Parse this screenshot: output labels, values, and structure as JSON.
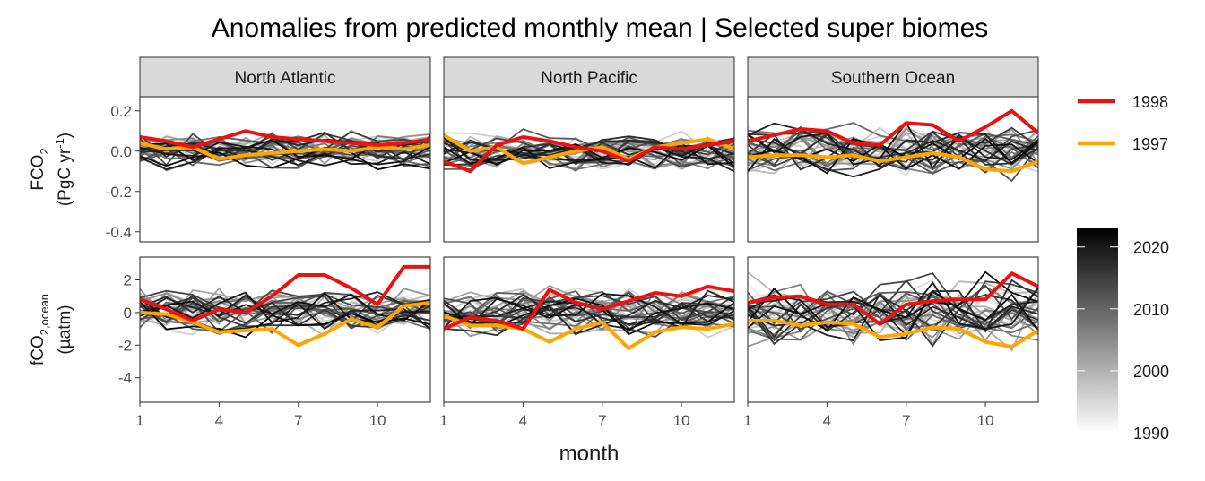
{
  "chart_data": {
    "type": "line",
    "title": "Anomalies from predicted monthly mean | Selected super biomes",
    "xlabel": "month",
    "x_ticks": [
      1,
      4,
      7,
      10
    ],
    "xlim": [
      1,
      12
    ],
    "facets": {
      "columns": [
        "North Atlantic",
        "North Pacific",
        "Southern Ocean"
      ],
      "rows": [
        {
          "id": "FCO2",
          "label_main": "FCO",
          "label_sub": "2",
          "unit_text": "(PgC yr",
          "unit_sup": "-1",
          "unit_close": ")",
          "ylim": [
            -0.45,
            0.27
          ],
          "y_ticks": [
            -0.4,
            -0.2,
            0.0,
            0.2
          ],
          "y_tick_labels": [
            "-0.4",
            "-0.2",
            "0.0",
            "0.2"
          ]
        },
        {
          "id": "fco2ocean",
          "label_main": "fCO",
          "label_sub": "2,ocean",
          "unit_text": "(µatm)",
          "ylim": [
            -5.5,
            3.4
          ],
          "y_ticks": [
            -4,
            -2,
            0,
            2
          ],
          "y_tick_labels": [
            "-4",
            "-2",
            "0",
            "2"
          ]
        }
      ]
    },
    "grayscale_legend": {
      "min": 1990,
      "max": 2023,
      "ticks": [
        1990,
        2000,
        2010,
        2020
      ]
    },
    "highlight_series": [
      {
        "name": "1998",
        "color": "#ee1111"
      },
      {
        "name": "1997",
        "color": "#ffa500"
      }
    ],
    "panels": [
      {
        "row": "FCO2",
        "column": "North Atlantic",
        "highlight": {
          "1998": [
            0.07,
            0.05,
            0.02,
            0.06,
            0.1,
            0.07,
            0.06,
            0.05,
            0.04,
            0.03,
            0.04,
            0.06
          ],
          "1997": [
            0.04,
            0.01,
            0.02,
            -0.04,
            -0.02,
            -0.01,
            0.0,
            0.01,
            0.0,
            0.02,
            0.01,
            0.03
          ]
        }
      },
      {
        "row": "FCO2",
        "column": "North Pacific",
        "highlight": {
          "1998": [
            -0.05,
            -0.1,
            0.03,
            0.07,
            0.05,
            0.02,
            0.0,
            -0.05,
            0.02,
            0.01,
            0.03,
            0.05
          ],
          "1997": [
            0.08,
            0.0,
            0.02,
            -0.06,
            -0.03,
            0.0,
            0.02,
            -0.04,
            0.02,
            0.04,
            0.06,
            0.01
          ]
        }
      },
      {
        "row": "FCO2",
        "column": "Southern Ocean",
        "highlight": {
          "1998": [
            0.05,
            0.08,
            0.11,
            0.1,
            0.04,
            0.03,
            0.14,
            0.13,
            0.05,
            0.12,
            0.2,
            0.09
          ],
          "1997": [
            -0.03,
            -0.02,
            -0.02,
            -0.03,
            -0.02,
            -0.05,
            -0.03,
            -0.01,
            -0.03,
            -0.09,
            -0.1,
            -0.05
          ]
        }
      },
      {
        "row": "fco2ocean",
        "column": "North Atlantic",
        "highlight": {
          "1998": [
            0.8,
            0.2,
            -0.5,
            0.2,
            0.0,
            1.0,
            2.3,
            2.3,
            1.5,
            0.5,
            2.8,
            2.8
          ],
          "1997": [
            0.0,
            -0.1,
            -0.6,
            -1.2,
            -1.1,
            -1.0,
            -2.0,
            -1.3,
            -0.4,
            -0.9,
            0.4,
            0.6
          ]
        }
      },
      {
        "row": "fco2ocean",
        "column": "North Pacific",
        "highlight": {
          "1998": [
            -1.0,
            -0.3,
            -0.5,
            -1.0,
            1.4,
            0.6,
            0.2,
            0.7,
            1.2,
            1.0,
            1.6,
            1.3
          ],
          "1997": [
            -0.2,
            -0.8,
            -0.8,
            -1.0,
            -1.8,
            -1.0,
            -0.6,
            -2.2,
            -1.2,
            -0.9,
            -1.0,
            -0.7
          ]
        }
      },
      {
        "row": "fco2ocean",
        "column": "Southern Ocean",
        "highlight": {
          "1998": [
            0.6,
            0.9,
            1.0,
            0.5,
            0.5,
            -0.7,
            0.5,
            0.7,
            0.8,
            0.8,
            2.4,
            1.6
          ],
          "1997": [
            -0.5,
            -0.5,
            -0.8,
            -0.6,
            -0.7,
            -1.5,
            -1.3,
            -0.9,
            -1.0,
            -1.8,
            -2.1,
            -1.1
          ]
        }
      }
    ]
  }
}
